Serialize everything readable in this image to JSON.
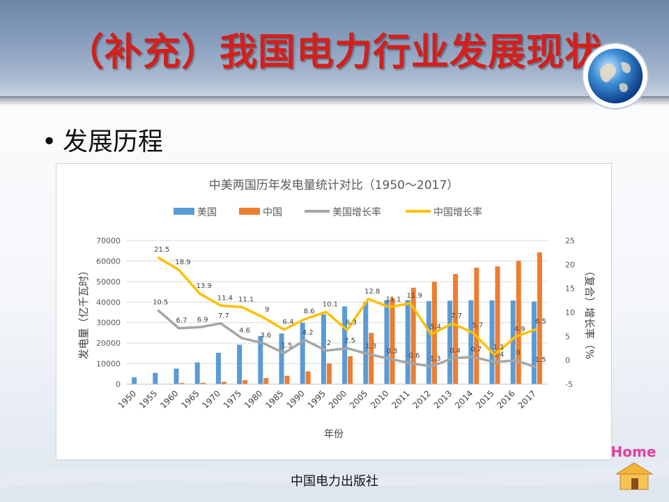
{
  "slide": {
    "title": "（补充）我国电力行业发展现状",
    "bullet": "发展历程",
    "publisher": "中国电力出版社",
    "home_label": "Home",
    "icons": [
      "globe-icon",
      "home-icon"
    ]
  },
  "chart_data": {
    "type": "bar",
    "title": "中美两国历年发电量统计对比（1950～2017）",
    "xlabel": "年份",
    "ylabel": "发电量（亿千瓦时）",
    "y2label": "（复合）增长率（%",
    "categories": [
      "1950",
      "1955",
      "1960",
      "1965",
      "1970",
      "1975",
      "1980",
      "1985",
      "1990",
      "1995",
      "2000",
      "2005",
      "2010",
      "2011",
      "2012",
      "2013",
      "2014",
      "2015",
      "2016",
      "2017"
    ],
    "ylim": [
      0,
      70000
    ],
    "yticks": [
      "0",
      "10000",
      "20000",
      "30000",
      "40000",
      "50000",
      "60000",
      "70000"
    ],
    "y2lim": [
      -5,
      25
    ],
    "y2ticks": [
      "-5",
      "0",
      "5",
      "10",
      "15",
      "20",
      "25"
    ],
    "legend_position": "top",
    "series": [
      {
        "name": "美国",
        "kind": "bar",
        "color": "#5b9bd5",
        "values": [
          3300,
          5500,
          7600,
          10600,
          15300,
          19200,
          23500,
          24700,
          30000,
          34000,
          37900,
          40000,
          41000,
          41000,
          40500,
          40700,
          40900,
          40800,
          40800,
          40300
        ]
      },
      {
        "name": "中国",
        "kind": "bar",
        "color": "#ed7d31",
        "values": [
          46,
          190,
          590,
          680,
          1160,
          1960,
          3000,
          4100,
          6200,
          10100,
          13600,
          25000,
          42000,
          47000,
          49900,
          53700,
          56800,
          57400,
          60200,
          64200
        ]
      },
      {
        "name": "美国增长率",
        "kind": "line",
        "color": "#a5a5a5",
        "values": [
          null,
          10.5,
          6.7,
          6.9,
          7.7,
          4.6,
          3.6,
          1.5,
          4.2,
          2,
          2.5,
          1.3,
          0.3,
          -0.6,
          -1.3,
          0.4,
          0.7,
          -0.4,
          0,
          -1.5
        ],
        "labels": [
          "",
          "10.5",
          "6.7",
          "6.9",
          "7.7",
          "4.6",
          "3.6",
          "1.5",
          "4.2",
          "2",
          "2.5",
          "1.3",
          "0.3",
          "-0.6",
          "-1.3",
          "0.4",
          "0.7",
          "-0.4",
          "0",
          "-1.5"
        ]
      },
      {
        "name": "中国增长率",
        "kind": "line",
        "color": "#ffc000",
        "values": [
          null,
          21.5,
          18.9,
          13.9,
          11.4,
          11.1,
          9,
          6.4,
          8.6,
          10.1,
          6.3,
          12.8,
          11.1,
          11.9,
          5.4,
          7.7,
          5.7,
          1.1,
          4.9,
          6.5
        ],
        "labels": [
          "",
          "21.5",
          "18.9",
          "13.9",
          "11.4",
          "11.1",
          "9",
          "6.4",
          "8.6",
          "10.1",
          "6.3",
          "12.8",
          "11.1",
          "11.9",
          "5.4",
          "7.7",
          "5.7",
          "1.1",
          "4.9",
          "6.5"
        ]
      }
    ]
  }
}
